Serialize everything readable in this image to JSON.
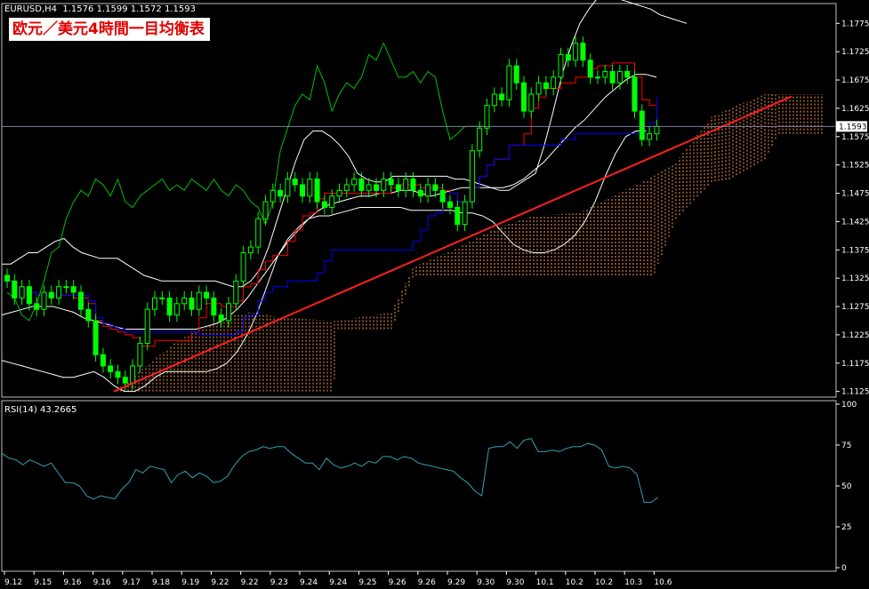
{
  "header": {
    "symbol_tf": "EURUSD,H4",
    "ohlc": [
      "1.1576",
      "1.1599",
      "1.1572",
      "1.1593"
    ],
    "title": "欧元／美元4時間一目均衡表",
    "current_price": "1.1593"
  },
  "rsi": {
    "label": "RSI(14)",
    "value": "43.2665",
    "ylim": [
      0,
      100
    ],
    "ticks": [
      "100",
      "75",
      "50",
      "25",
      "0"
    ]
  },
  "colors": {
    "background": "#000000",
    "up_candle": "#00ff00",
    "down_candle": "#00ff00",
    "tenkan": "#ff0000",
    "kijun": "#0000ff",
    "chikou": "#00c000",
    "bollinger": "#ffffff",
    "kumo": "#ff9a50",
    "trendline": "#ff2020",
    "rsi": "#30a0b0",
    "price_line": "#8080a0"
  },
  "chart_data": {
    "type": "candlestick",
    "ylim": [
      1.1115,
      1.181
    ],
    "y_ticks": [
      "1.1775",
      "1.1725",
      "1.1675",
      "1.1625",
      "1.1575",
      "1.1525",
      "1.1475",
      "1.1425",
      "1.1375",
      "1.1325",
      "1.1275",
      "1.1225",
      "1.1175",
      "1.1125"
    ],
    "x_ticks": [
      "9.12",
      "9.15",
      "9.16",
      "9.16",
      "9.17",
      "9.18",
      "9.19",
      "9.22",
      "9.22",
      "9.23",
      "9.24",
      "9.24",
      "9.25",
      "9.26",
      "9.26",
      "9.29",
      "9.30",
      "9.30",
      "10.1",
      "10.2",
      "10.2",
      "10.3",
      "10.6"
    ],
    "closes": [
      1.132,
      1.129,
      1.131,
      1.128,
      1.127,
      1.13,
      1.129,
      1.131,
      1.131,
      1.13,
      1.127,
      1.125,
      1.119,
      1.117,
      1.116,
      1.115,
      1.114,
      1.117,
      1.121,
      1.127,
      1.129,
      1.129,
      1.126,
      1.128,
      1.129,
      1.127,
      1.13,
      1.129,
      1.126,
      1.125,
      1.128,
      1.132,
      1.137,
      1.138,
      1.143,
      1.146,
      1.148,
      1.147,
      1.15,
      1.149,
      1.147,
      1.15,
      1.146,
      1.145,
      1.147,
      1.148,
      1.149,
      1.15,
      1.148,
      1.149,
      1.148,
      1.15,
      1.149,
      1.148,
      1.15,
      1.148,
      1.147,
      1.149,
      1.148,
      1.146,
      1.145,
      1.142,
      1.146,
      1.155,
      1.159,
      1.163,
      1.165,
      1.164,
      1.17,
      1.167,
      1.162,
      1.165,
      1.167,
      1.166,
      1.168,
      1.172,
      1.171,
      1.174,
      1.171,
      1.168,
      1.168,
      1.169,
      1.167,
      1.169,
      1.168,
      1.162,
      1.157,
      1.158,
      1.1593
    ],
    "bb_upper": [
      1.135,
      1.135,
      1.136,
      1.137,
      1.137,
      1.138,
      1.139,
      1.1395,
      1.138,
      1.137,
      1.1365,
      1.136,
      1.136,
      1.136,
      1.135,
      1.134,
      1.133,
      1.1325,
      1.132,
      1.132,
      1.132,
      1.132,
      1.132,
      1.132,
      1.132,
      1.1315,
      1.131,
      1.131,
      1.132,
      1.134,
      1.138,
      1.143,
      1.148,
      1.153,
      1.157,
      1.1585,
      1.1585,
      1.1575,
      1.156,
      1.154,
      1.151,
      1.15,
      1.1495,
      1.1495,
      1.1505,
      1.1505,
      1.1505,
      1.1505,
      1.1505,
      1.1505,
      1.1505,
      1.15,
      1.15,
      1.1495,
      1.149,
      1.1485,
      1.148,
      1.148,
      1.149,
      1.15,
      1.151,
      1.156,
      1.162,
      1.1685,
      1.1735,
      1.1775,
      1.18,
      1.182,
      1.182,
      1.182,
      1.1815,
      1.181,
      1.1805,
      1.18,
      1.179,
      1.1785,
      1.178,
      1.1775
    ],
    "bb_middle": [
      1.126,
      1.1265,
      1.127,
      1.1275,
      1.1275,
      1.1275,
      1.127,
      1.1265,
      1.1255,
      1.125,
      1.1245,
      1.124,
      1.1235,
      1.1235,
      1.1235,
      1.1235,
      1.1235,
      1.1235,
      1.1235,
      1.1235,
      1.124,
      1.1245,
      1.1255,
      1.127,
      1.129,
      1.1315,
      1.134,
      1.1365,
      1.139,
      1.141,
      1.143,
      1.1445,
      1.1455,
      1.146,
      1.1465,
      1.147,
      1.147,
      1.1475,
      1.1475,
      1.148,
      1.148,
      1.1475,
      1.147,
      1.1475,
      1.148,
      1.1485,
      1.1485,
      1.1485,
      1.1485,
      1.1485,
      1.149,
      1.15,
      1.1515,
      1.153,
      1.155,
      1.157,
      1.159,
      1.1605,
      1.1625,
      1.1645,
      1.166,
      1.1675,
      1.1685,
      1.1685,
      1.168
    ],
    "bb_lower": [
      1.118,
      1.1175,
      1.117,
      1.1165,
      1.116,
      1.1155,
      1.115,
      1.115,
      1.1155,
      1.116,
      1.115,
      1.1135,
      1.1125,
      1.1125,
      1.1135,
      1.115,
      1.116,
      1.116,
      1.116,
      1.116,
      1.116,
      1.1165,
      1.1175,
      1.1195,
      1.1225,
      1.1265,
      1.1315,
      1.1365,
      1.1395,
      1.1415,
      1.143,
      1.1435,
      1.1435,
      1.144,
      1.1445,
      1.145,
      1.145,
      1.145,
      1.145,
      1.145,
      1.1445,
      1.1445,
      1.1445,
      1.1445,
      1.1445,
      1.144,
      1.144,
      1.1435,
      1.1425,
      1.1405,
      1.1385,
      1.1375,
      1.137,
      1.137,
      1.1375,
      1.1385,
      1.14,
      1.1425,
      1.146,
      1.1505,
      1.1545,
      1.1575,
      1.1585,
      1.1585
    ],
    "rsi_values": [
      70,
      67,
      66,
      63,
      66,
      64,
      62,
      64,
      58,
      52,
      52,
      50,
      44,
      42,
      44,
      43,
      42,
      48,
      52,
      60,
      58,
      62,
      61,
      60,
      52,
      57,
      59,
      55,
      58,
      56,
      52,
      53,
      56,
      63,
      68,
      71,
      72,
      74,
      73,
      74,
      74,
      70,
      67,
      64,
      64,
      60,
      67,
      63,
      61,
      62,
      64,
      62,
      65,
      64,
      68,
      68,
      66,
      68,
      67,
      64,
      63,
      62,
      61,
      60,
      59,
      55,
      52,
      47,
      44,
      73,
      74,
      74,
      77,
      73,
      78,
      79,
      71,
      71,
      72,
      71,
      73,
      74,
      74,
      76,
      75,
      72,
      62,
      61,
      62,
      61,
      57,
      40,
      40,
      43
    ]
  }
}
